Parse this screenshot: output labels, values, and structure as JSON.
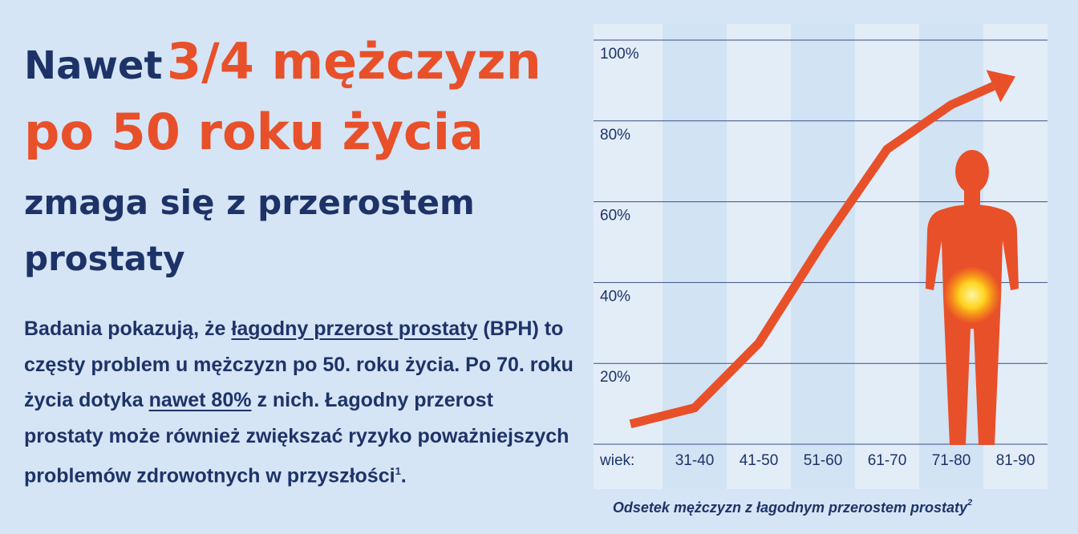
{
  "headline": {
    "lead": "Nawet",
    "highlight_1": "3/4 mężczyzn",
    "highlight_2": "po 50 roku życia",
    "rest": "zmaga się z przerostem prostaty"
  },
  "body": {
    "part_1": "Badania pokazują, że",
    "link_1": "łagodny przerost prostaty",
    "part_2": "(BPH) to częsty problem u mężczyzn po 50. roku życia. Po 70. roku życia dotyka",
    "link_2": "nawet 80%",
    "part_3": "z nich. Łagodny przerost prostaty może również zwiększać ryzyko poważniejszych problemów zdrowotnych w przyszłości",
    "footnote": "1",
    "part_4": "."
  },
  "chart_data": {
    "type": "line",
    "x_label": "wiek:",
    "categories": [
      null,
      "31-40",
      "41-50",
      "51-60",
      "61-70",
      "71-80",
      "81-90"
    ],
    "values": [
      5,
      9,
      25,
      50,
      73,
      84,
      91
    ],
    "color": "#e8502a",
    "ylim": [
      0,
      100
    ],
    "yticks": [
      {
        "value": 20,
        "label": "20%"
      },
      {
        "value": 40,
        "label": "40%"
      },
      {
        "value": 60,
        "label": "60%"
      },
      {
        "value": 80,
        "label": "80%"
      },
      {
        "value": 100,
        "label": "100%"
      }
    ],
    "grid": true,
    "caption": "Odsetek mężczyzn z łagodnym przerostem prostaty",
    "caption_ref": "2"
  }
}
